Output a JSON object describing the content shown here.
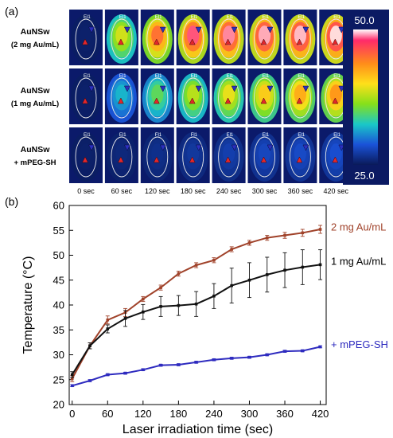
{
  "panel_a": {
    "label": "(a)",
    "rows": [
      {
        "name": "AuNSw",
        "sub": "(2 mg Au/mL)"
      },
      {
        "name": "AuNSw",
        "sub": "(1 mg Au/mL)"
      },
      {
        "name": "AuNSw",
        "sub": "+ mPEG-SH"
      }
    ],
    "time_labels": [
      "0 sec",
      "60 sec",
      "120 sec",
      "180 sec",
      "240 sec",
      "300 sec",
      "360 sec",
      "420 sec"
    ],
    "tile_tags": [
      [
        "El1",
        "El1",
        "El1",
        "El1",
        "El1",
        "El1",
        "El1",
        "El1"
      ],
      [
        "El1",
        "El1",
        "El1",
        "El1",
        "El1",
        "El1",
        "El1",
        "El1"
      ],
      [
        "El1",
        "El1",
        "Fl1",
        "Fl1",
        "El1",
        "El1",
        "El1",
        "El1"
      ]
    ],
    "colorbar": {
      "max_label": "50.0",
      "min_label": "25.0",
      "max": 50.0,
      "min": 25.0
    },
    "tile_heat": [
      [
        0.02,
        0.55,
        0.8,
        0.92,
        0.95,
        0.97,
        0.98,
        1.0
      ],
      [
        0.02,
        0.28,
        0.4,
        0.52,
        0.58,
        0.64,
        0.7,
        0.74
      ],
      [
        0.02,
        0.04,
        0.06,
        0.08,
        0.1,
        0.12,
        0.13,
        0.14
      ]
    ]
  },
  "chart_data": {
    "type": "line",
    "panel_label": "(b)",
    "xlabel": "Laser irradiation time (sec)",
    "ylabel": "Temperature (°C)",
    "xlim": [
      -5,
      430
    ],
    "ylim": [
      20,
      60
    ],
    "xticks": [
      0,
      60,
      120,
      180,
      240,
      300,
      360,
      420
    ],
    "yticks": [
      20,
      25,
      30,
      35,
      40,
      45,
      50,
      55,
      60
    ],
    "x": [
      0,
      30,
      60,
      90,
      120,
      150,
      180,
      210,
      240,
      270,
      300,
      330,
      360,
      390,
      420
    ],
    "series": [
      {
        "name": "2 mg Au/mL",
        "color": "#a0422a",
        "values": [
          25.2,
          31.8,
          37.0,
          38.5,
          41.2,
          43.5,
          46.3,
          48.0,
          49.0,
          51.2,
          52.5,
          53.5,
          54.0,
          54.5,
          55.2
        ],
        "errors": [
          0.6,
          0.6,
          0.8,
          0.8,
          0.5,
          0.5,
          0.5,
          0.5,
          0.5,
          0.5,
          0.5,
          0.5,
          0.6,
          0.7,
          0.8
        ]
      },
      {
        "name": "1 mg Au/mL",
        "color": "#111111",
        "values": [
          26.0,
          31.8,
          35.2,
          37.3,
          38.6,
          39.7,
          39.9,
          40.2,
          41.8,
          43.9,
          45.0,
          46.1,
          47.0,
          47.6,
          48.1
        ],
        "errors": [
          0.6,
          0.6,
          0.8,
          1.6,
          1.5,
          2.0,
          2.0,
          2.5,
          2.5,
          3.5,
          3.5,
          3.5,
          3.5,
          3.5,
          3.0
        ]
      },
      {
        "name": "+ mPEG-SH",
        "color": "#2e2bbf",
        "values": [
          23.8,
          24.8,
          26.0,
          26.3,
          27.0,
          27.9,
          28.0,
          28.5,
          29.0,
          29.3,
          29.5,
          30.0,
          30.7,
          30.8,
          31.6
        ],
        "errors": [
          0.2,
          0.2,
          0.2,
          0.2,
          0.2,
          0.2,
          0.2,
          0.2,
          0.2,
          0.2,
          0.2,
          0.2,
          0.2,
          0.2,
          0.2
        ]
      }
    ]
  }
}
